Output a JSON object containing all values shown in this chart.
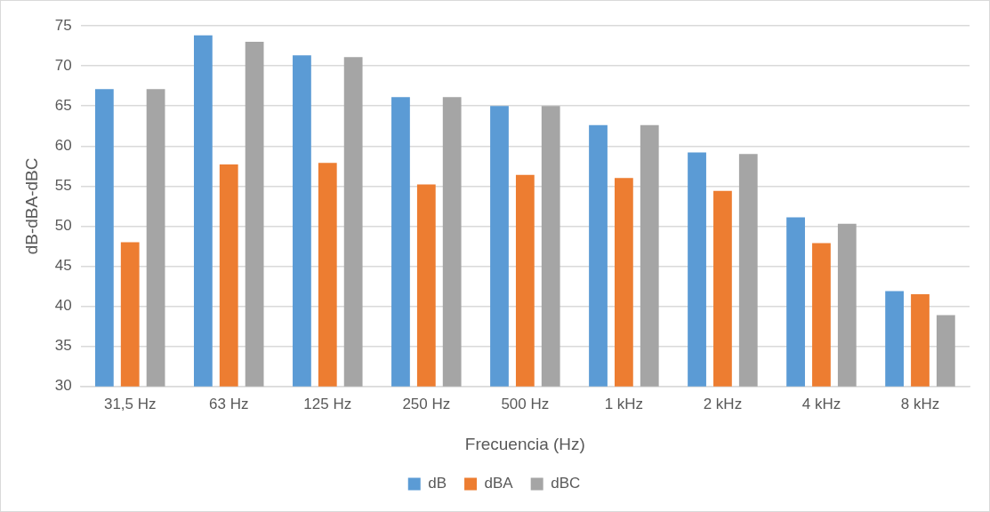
{
  "chart_data": {
    "type": "bar",
    "categories": [
      "31,5 Hz",
      "63 Hz",
      "125 Hz",
      "250 Hz",
      "500 Hz",
      "1 kHz",
      "2 kHz",
      "4 kHz",
      "8 kHz"
    ],
    "series": [
      {
        "name": "dB",
        "color": "#5b9bd5",
        "values": [
          67.1,
          73.8,
          71.3,
          66.1,
          65.0,
          62.6,
          59.2,
          51.1,
          41.9
        ]
      },
      {
        "name": "dBA",
        "color": "#ed7d31",
        "values": [
          48.0,
          57.7,
          57.9,
          55.2,
          56.4,
          56.0,
          54.4,
          47.9,
          41.5
        ]
      },
      {
        "name": "dBC",
        "color": "#a5a5a5",
        "values": [
          67.1,
          73.0,
          71.1,
          66.1,
          65.0,
          62.6,
          59.0,
          50.3,
          38.9
        ]
      }
    ],
    "xlabel": "Frecuencia (Hz)",
    "ylabel": "dB-dBA-dBC",
    "ylim": [
      30,
      75
    ],
    "yticks": [
      30,
      35,
      40,
      45,
      50,
      55,
      60,
      65,
      70,
      75
    ],
    "grid": "y",
    "legend": "bottom"
  }
}
